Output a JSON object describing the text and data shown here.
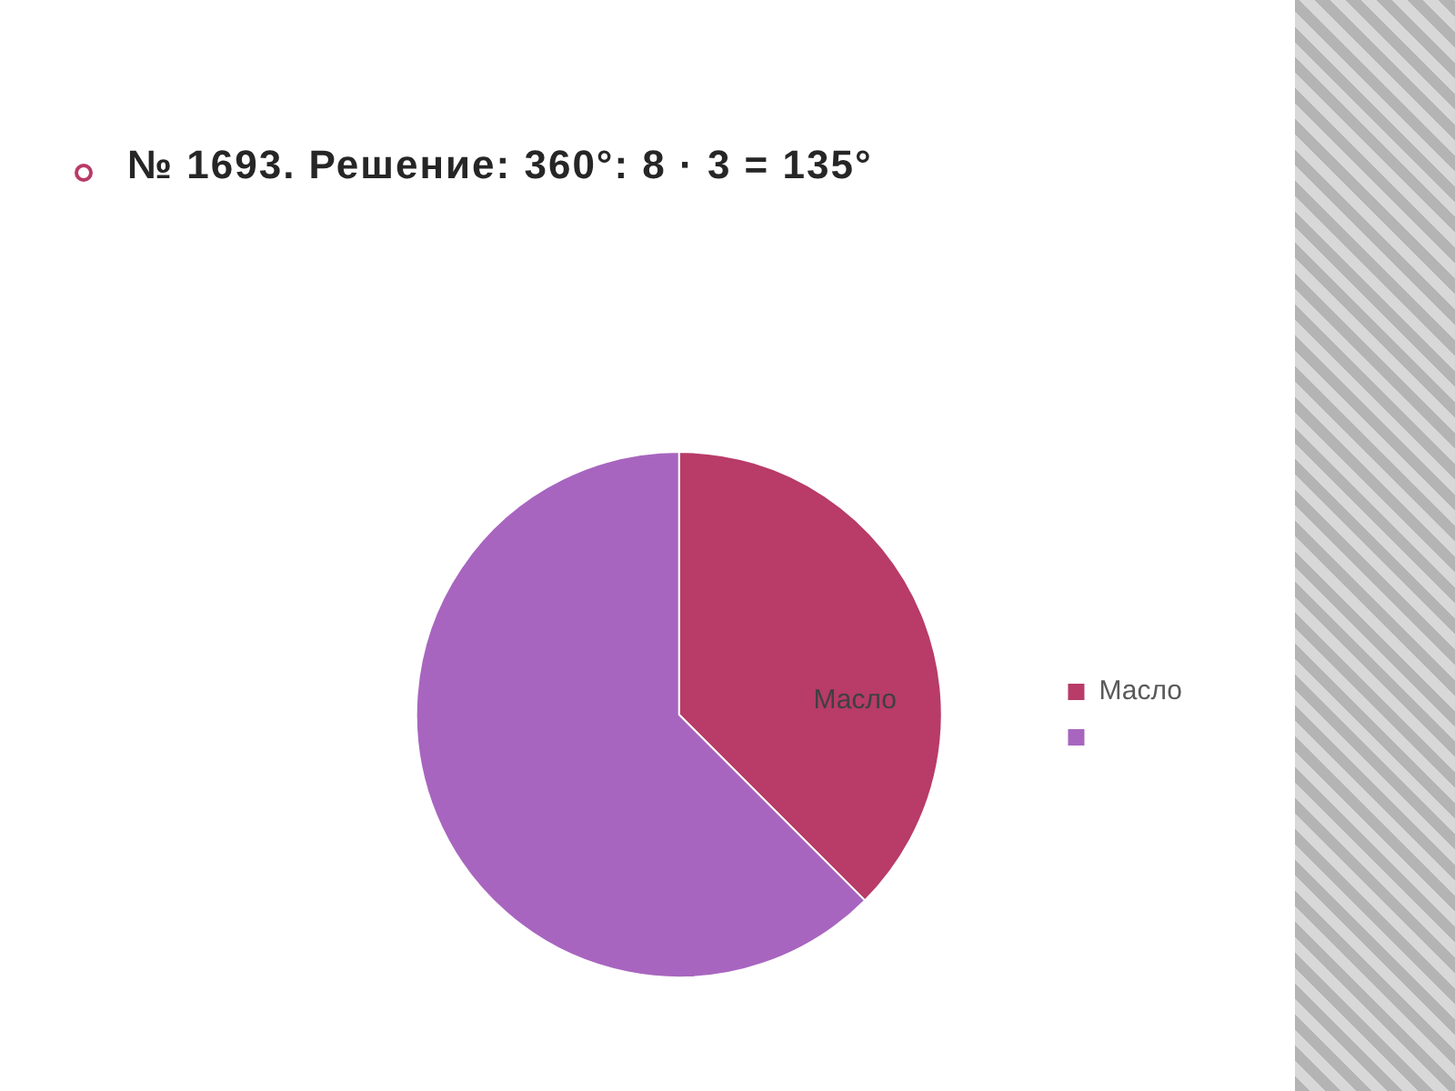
{
  "chart_data": {
    "type": "pie",
    "title": "№ 1693. Решение: 360°: 8 · 3 = 135°",
    "categories": [
      "Масло",
      null
    ],
    "values": [
      37.5,
      62.5
    ],
    "colors": [
      "#b83b68",
      "#a865bf"
    ],
    "legend": "right"
  }
}
